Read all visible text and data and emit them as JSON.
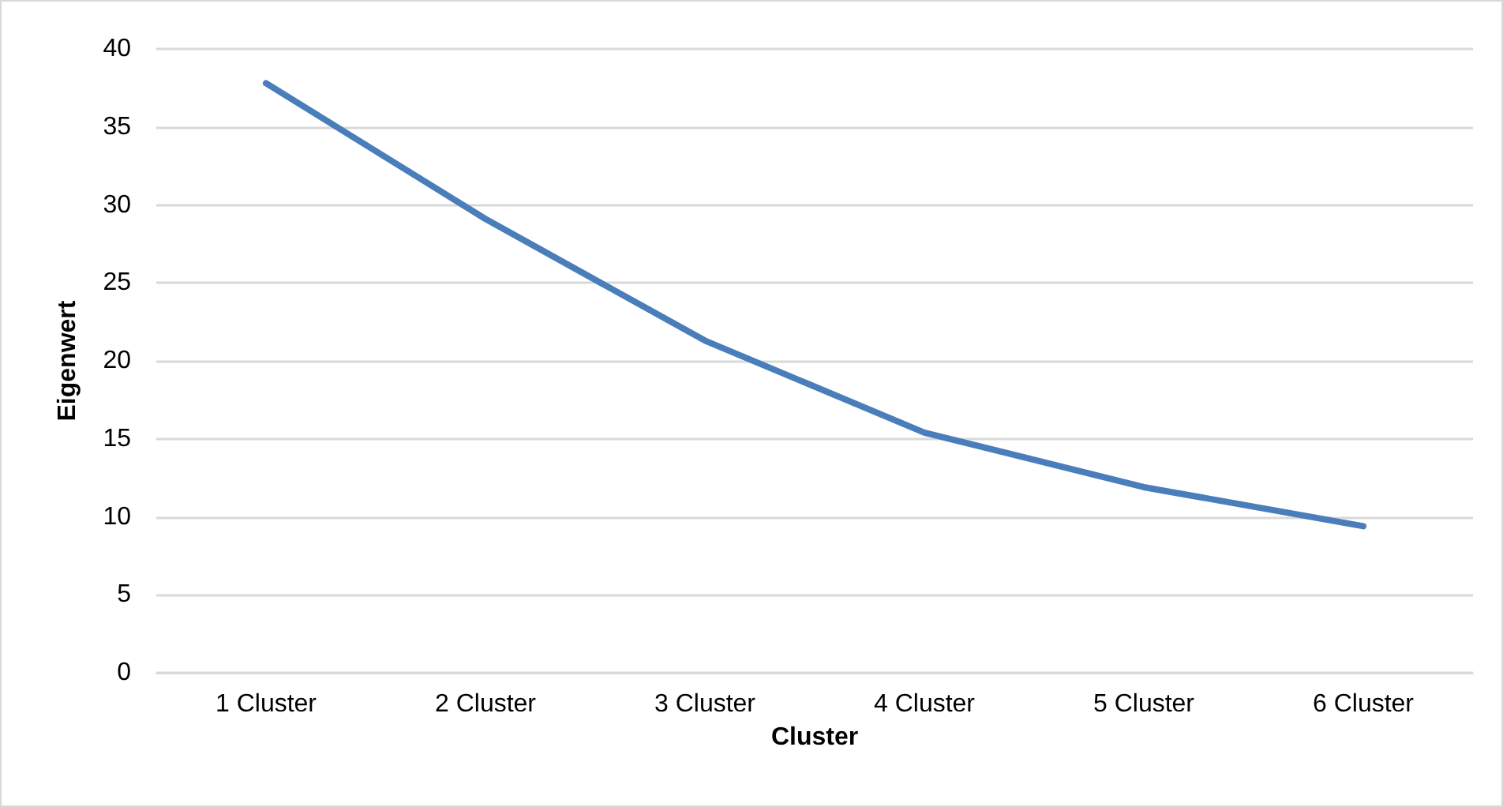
{
  "chart_data": {
    "type": "line",
    "xlabel": "Cluster",
    "ylabel": "Eigenwert",
    "categories": [
      "1 Cluster",
      "2 Cluster",
      "3 Cluster",
      "4 Cluster",
      "5 Cluster",
      "6 Cluster"
    ],
    "series": [
      {
        "color": "#4a7ebb",
        "values": [
          37.8,
          29.1,
          21.3,
          15.4,
          11.9,
          9.4
        ]
      }
    ],
    "ylim": [
      0,
      40
    ],
    "yticks": [
      0,
      5,
      10,
      15,
      20,
      25,
      30,
      35,
      40
    ],
    "grid": "y",
    "marker": "none",
    "line_style": "solid"
  }
}
